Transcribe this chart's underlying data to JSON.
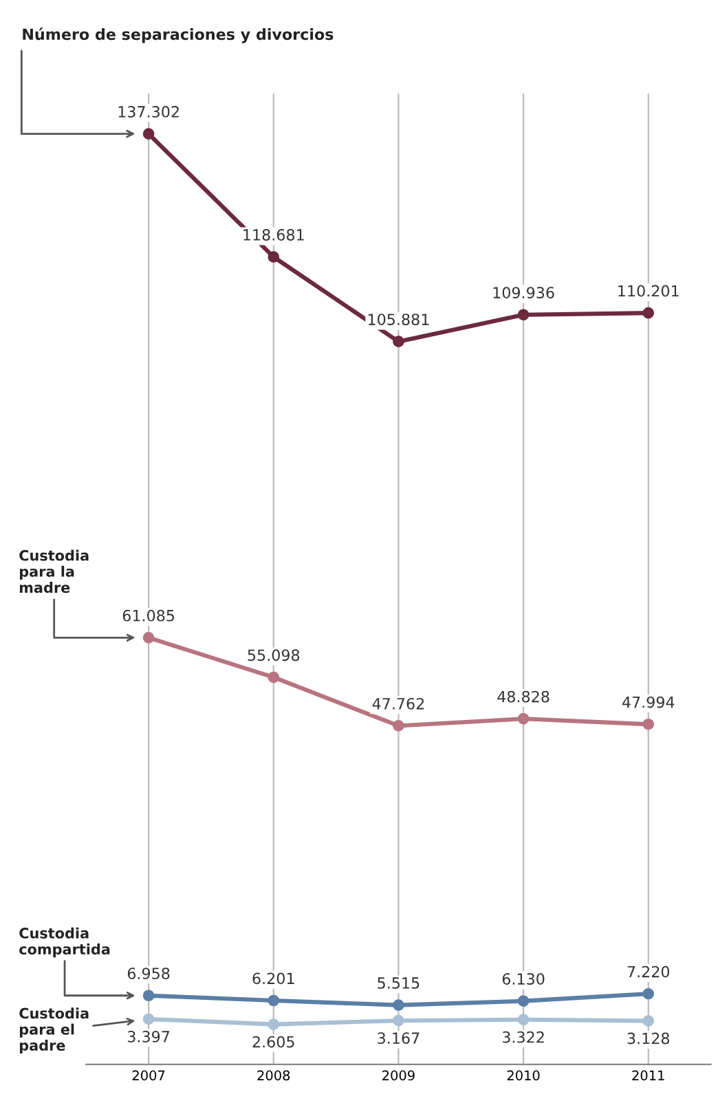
{
  "chart_data": {
    "type": "line",
    "categories": [
      "2007",
      "2008",
      "2009",
      "2010",
      "2011"
    ],
    "series": [
      {
        "name": "Número de separaciones y divorcios",
        "color": "#6b2a3e",
        "values": [
          137302,
          118681,
          105881,
          109936,
          110201
        ],
        "value_labels": [
          "137.302",
          "118.681",
          "105.881",
          "109.936",
          "110.201"
        ]
      },
      {
        "name": "Custodia\npara la\nmadre",
        "color": "#b87480",
        "values": [
          61085,
          55098,
          47762,
          48828,
          47994
        ],
        "value_labels": [
          "61.085",
          "55.098",
          "47.762",
          "48.828",
          "47.994"
        ]
      },
      {
        "name": "Custodia\ncompartida",
        "color": "#5a7ea6",
        "values": [
          6958,
          6201,
          5515,
          6130,
          7220
        ],
        "value_labels": [
          "6.958",
          "6.201",
          "5.515",
          "6.130",
          "7.220"
        ]
      },
      {
        "name": "Custodia\npara el\npadre",
        "color": "#a9bfd6",
        "values": [
          3397,
          2605,
          3167,
          3322,
          3128
        ],
        "value_labels": [
          "3.397",
          "2.605",
          "3.167",
          "3.322",
          "3.128"
        ]
      }
    ],
    "grid": "x",
    "marker": "circle",
    "line_style": "solid",
    "tick_labels": "x"
  }
}
